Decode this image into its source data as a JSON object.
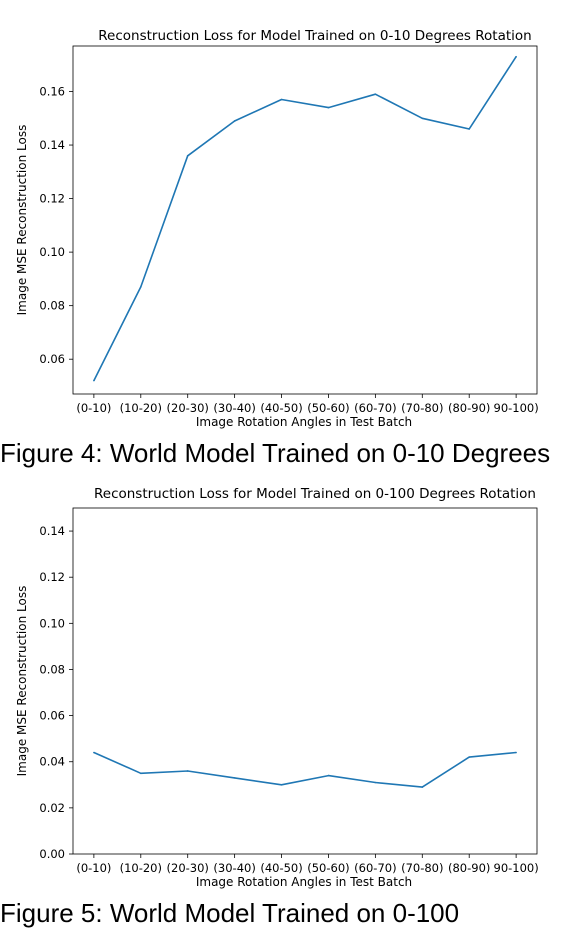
{
  "figures": [
    {
      "caption": "Figure 4: World Model Trained on 0-10 Degrees"
    },
    {
      "caption": "Figure 5: World Model Trained on 0-100"
    }
  ],
  "chart_data": [
    {
      "type": "line",
      "title": "Reconstruction Loss for Model Trained on 0-10 Degrees Rotation",
      "xlabel": "Image Rotation Angles in Test Batch",
      "ylabel": "Image MSE Reconstruction Loss",
      "categories": [
        "(0-10)",
        "(10-20)",
        "(20-30)",
        "(30-40)",
        "(40-50)",
        "(50-60)",
        "(60-70)",
        "(70-80)",
        "(80-90)",
        "(90-100)"
      ],
      "category_labels": [
        "(0-10)",
        "(10-20)",
        "(20-30)",
        "(30-40)",
        "(40-50)",
        "(50-60)",
        "(60-70)",
        "(70-80)",
        "(80-90)",
        "90-100)"
      ],
      "values": [
        0.052,
        0.087,
        0.136,
        0.149,
        0.157,
        0.154,
        0.159,
        0.15,
        0.146,
        0.173
      ],
      "ylim": [
        0.047,
        0.177
      ],
      "yticks": [
        0.06,
        0.08,
        0.1,
        0.12,
        0.14,
        0.16
      ],
      "ytick_labels": [
        "0.06",
        "0.08",
        "0.10",
        "0.12",
        "0.14",
        "0.16"
      ],
      "line_color": "#1f77b4"
    },
    {
      "type": "line",
      "title": "Reconstruction Loss for Model Trained on 0-100 Degrees Rotation",
      "xlabel": "Image Rotation Angles in Test Batch",
      "ylabel": "Image MSE Reconstruction Loss",
      "categories": [
        "(0-10)",
        "(10-20)",
        "(20-30)",
        "(30-40)",
        "(40-50)",
        "(50-60)",
        "(60-70)",
        "(70-80)",
        "(80-90)",
        "(90-100)"
      ],
      "category_labels": [
        "(0-10)",
        "(10-20)",
        "(20-30)",
        "(30-40)",
        "(40-50)",
        "(50-60)",
        "(60-70)",
        "(70-80)",
        "(80-90)",
        "90-100)"
      ],
      "values": [
        0.044,
        0.035,
        0.036,
        0.033,
        0.03,
        0.034,
        0.031,
        0.029,
        0.042,
        0.044
      ],
      "ylim": [
        0.0,
        0.15
      ],
      "yticks": [
        0.0,
        0.02,
        0.04,
        0.06,
        0.08,
        0.1,
        0.12,
        0.14
      ],
      "ytick_labels": [
        "0.00",
        "0.02",
        "0.04",
        "0.06",
        "0.08",
        "0.10",
        "0.12",
        "0.14"
      ],
      "line_color": "#1f77b4"
    }
  ]
}
